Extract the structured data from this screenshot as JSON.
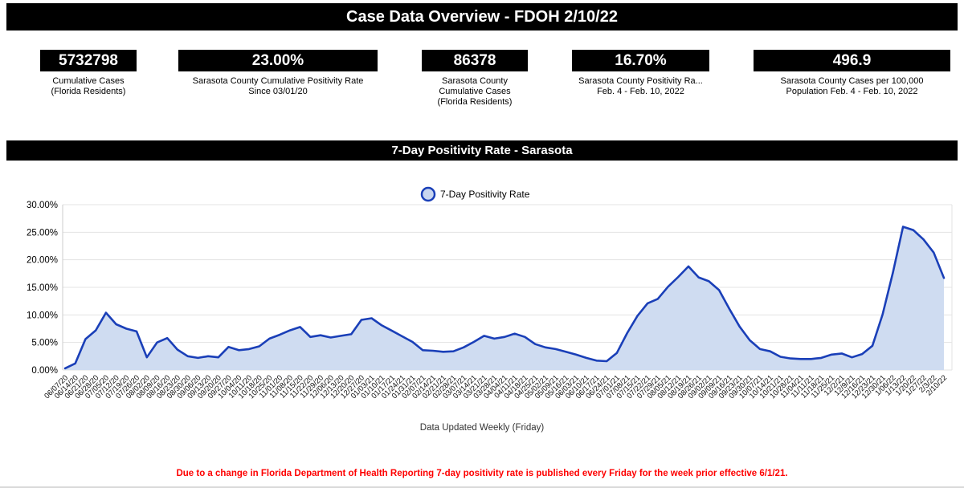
{
  "header": {
    "title": "Case Data Overview - FDOH 2/10/22"
  },
  "kpis": [
    {
      "name": "cumulative-cases",
      "value": "5732798",
      "label_lines": [
        "Cumulative Cases",
        "(Florida Residents)"
      ]
    },
    {
      "name": "cumulative-positivity-rate",
      "value": "23.00%",
      "label_lines": [
        "Sarasota County Cumulative Positivity Rate",
        "Since 03/01/20"
      ]
    },
    {
      "name": "county-cumulative-cases",
      "value": "86378",
      "label_lines": [
        "Sarasota County",
        "Cumulative Cases",
        "(Florida Residents)"
      ]
    },
    {
      "name": "weekly-positivity-rate",
      "value": "16.70%",
      "label_lines": [
        "Sarasota County Positivity Ra...",
        "Feb. 4 - Feb. 10, 2022"
      ]
    },
    {
      "name": "cases-per-100k",
      "value": "496.9",
      "label_lines": [
        "Sarasota County Cases per 100,000",
        "Population Feb. 4 - Feb. 10, 2022"
      ]
    }
  ],
  "section": {
    "title": "7-Day Positivity Rate - Sarasota"
  },
  "chart_data": {
    "type": "area",
    "title": "7-Day Positivity Rate - Sarasota",
    "legend_label": "7-Day Positivity Rate",
    "legend_position": "top-center",
    "grid": true,
    "ylim": [
      0,
      30
    ],
    "ytick_labels": [
      "0.00%",
      "5.00%",
      "10.00%",
      "15.00%",
      "20.00%",
      "25.00%",
      "30.00%"
    ],
    "unit": "%",
    "line_color": "#1a3fb8",
    "fill_color": "#cfdcf1",
    "caption": "Data Updated Weekly (Friday)",
    "x": [
      "06/07/20",
      "06/14/20",
      "06/21/20",
      "06/28/20",
      "07/05/20",
      "07/12/20",
      "07/19/20",
      "07/26/20",
      "08/02/20",
      "08/09/20",
      "08/16/20",
      "08/23/20",
      "08/30/20",
      "09/06/20",
      "09/13/20",
      "09/20/20",
      "09/27/20",
      "10/04/20",
      "10/11/20",
      "10/18/20",
      "10/25/20",
      "11/01/20",
      "11/08/20",
      "11/15/20",
      "11/22/20",
      "11/29/20",
      "12/06/20",
      "12/13/20",
      "12/20/20",
      "12/27/20",
      "01/03/21",
      "01/10/21",
      "01/17/21",
      "01/24/21",
      "01/31/21",
      "02/07/21",
      "02/14/21",
      "02/21/21",
      "02/28/21",
      "03/07/21",
      "03/14/21",
      "03/21/21",
      "03/28/21",
      "04/04/21",
      "04/11/21",
      "04/18/21",
      "04/25/21",
      "05/02/21",
      "05/09/21",
      "05/16/21",
      "06/03/21",
      "06/10/21",
      "06/17/21",
      "06/24/21",
      "07/01/21",
      "07/08/21",
      "07/15/21",
      "07/22/21",
      "07/29/21",
      "08/05/21",
      "08/12/21",
      "08/19/21",
      "08/26/21",
      "09/02/21",
      "09/09/21",
      "09/16/21",
      "09/23/21",
      "09/30/21",
      "10/07/21",
      "10/14/21",
      "10/21/21",
      "10/28/21",
      "11/04/21",
      "11/11/21",
      "11/18/21",
      "11/25/21",
      "12/2/21",
      "12/9/21",
      "12/16/21",
      "12/23/21",
      "12/30/21",
      "1/06/22",
      "1/13/22",
      "1/20/22",
      "1/27/22",
      "2/3/22",
      "2/10/22"
    ],
    "series": [
      {
        "name": "7-Day Positivity Rate",
        "values": [
          0.3,
          1.2,
          5.6,
          7.2,
          10.4,
          8.3,
          7.5,
          7.0,
          2.3,
          5.0,
          5.8,
          3.7,
          2.5,
          2.2,
          2.5,
          2.3,
          4.2,
          3.6,
          3.8,
          4.3,
          5.7,
          6.4,
          7.2,
          7.8,
          6.0,
          6.3,
          5.9,
          6.2,
          6.5,
          9.1,
          9.4,
          8.1,
          7.1,
          6.1,
          5.1,
          3.6,
          3.5,
          3.3,
          3.4,
          4.1,
          5.1,
          6.2,
          5.7,
          6.0,
          6.6,
          6.0,
          4.7,
          4.1,
          3.8,
          3.3,
          2.8,
          2.2,
          1.7,
          1.6,
          3.1,
          6.7,
          9.8,
          12.1,
          12.9,
          15.1,
          16.9,
          18.8,
          16.8,
          16.1,
          14.5,
          11.1,
          7.9,
          5.4,
          3.8,
          3.4,
          2.4,
          2.1,
          2.0,
          2.0,
          2.2,
          2.8,
          3.0,
          2.3,
          2.9,
          4.4,
          10.1,
          17.6,
          26.0,
          25.4,
          23.7,
          21.3,
          16.7
        ]
      }
    ]
  },
  "footnote": {
    "text": "Due to a change in Florida Department of Health Reporting 7-day positivity rate is published every Friday for the week prior effective 6/1/21.",
    "color": "#fe0000"
  }
}
